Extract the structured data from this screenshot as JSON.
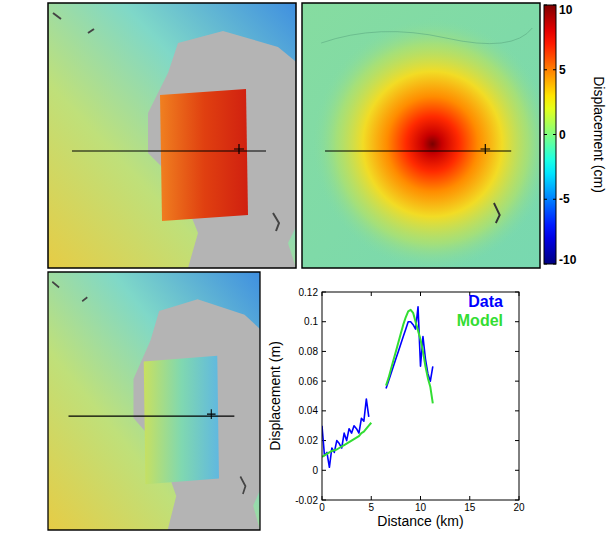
{
  "chart_data": [
    {
      "type": "heatmap",
      "colorbar_label": "Displacement (cm)",
      "colorbar_range": [
        -10,
        10
      ],
      "colorbar_ticks": [
        -10,
        -5,
        0,
        5,
        10
      ]
    },
    {
      "type": "line",
      "x_label": "Distance (km)",
      "y_label": "Displacement (m)",
      "x": [
        0,
        0.25,
        0.5,
        0.75,
        1,
        1.25,
        1.5,
        1.75,
        2,
        2.25,
        2.5,
        2.75,
        3,
        3.25,
        3.5,
        3.75,
        4,
        4.25,
        4.5,
        4.75,
        5,
        5.75,
        6.5,
        6.75,
        7,
        7.25,
        7.5,
        7.75,
        8,
        8.25,
        8.5,
        8.75,
        9,
        9.25,
        9.5,
        9.75,
        10,
        10.25,
        10.5,
        10.75,
        11,
        11.25
      ],
      "series": [
        {
          "name": "Data",
          "color": "#0000ff",
          "values": [
            0.03,
            0.01,
            0.012,
            0.002,
            0.015,
            0.012,
            0.02,
            0.018,
            0.015,
            0.025,
            0.02,
            0.028,
            0.025,
            0.03,
            0.028,
            0.025,
            0.035,
            0.033,
            0.048,
            0.036,
            null,
            null,
            0.055,
            0.06,
            0.065,
            0.07,
            0.075,
            0.08,
            0.085,
            0.09,
            0.095,
            0.1,
            0.1,
            0.098,
            0.095,
            0.11,
            0.07,
            0.09,
            0.075,
            0.065,
            0.06,
            0.07
          ]
        },
        {
          "name": "Model",
          "color": "#33dd33",
          "values": [
            0.009,
            0.01,
            0.011,
            0.012,
            0.013,
            0.0135,
            0.014,
            0.015,
            0.016,
            0.017,
            0.018,
            0.019,
            0.02,
            0.021,
            0.022,
            0.023,
            0.025,
            0.026,
            0.028,
            0.03,
            0.032,
            null,
            0.057,
            0.062,
            0.068,
            0.074,
            0.08,
            0.086,
            0.092,
            0.098,
            0.103,
            0.107,
            0.108,
            0.106,
            0.1,
            0.094,
            0.088,
            0.08,
            0.07,
            0.062,
            0.056,
            0.045
          ]
        }
      ],
      "xlim": [
        0,
        20
      ],
      "xticks": [
        0,
        5,
        10,
        15,
        20
      ],
      "ylim": [
        -0.02,
        0.12
      ],
      "yticks": [
        -0.02,
        0,
        0.02,
        0.04,
        0.06,
        0.08,
        0.1,
        0.12
      ],
      "legend": "top-right"
    }
  ]
}
